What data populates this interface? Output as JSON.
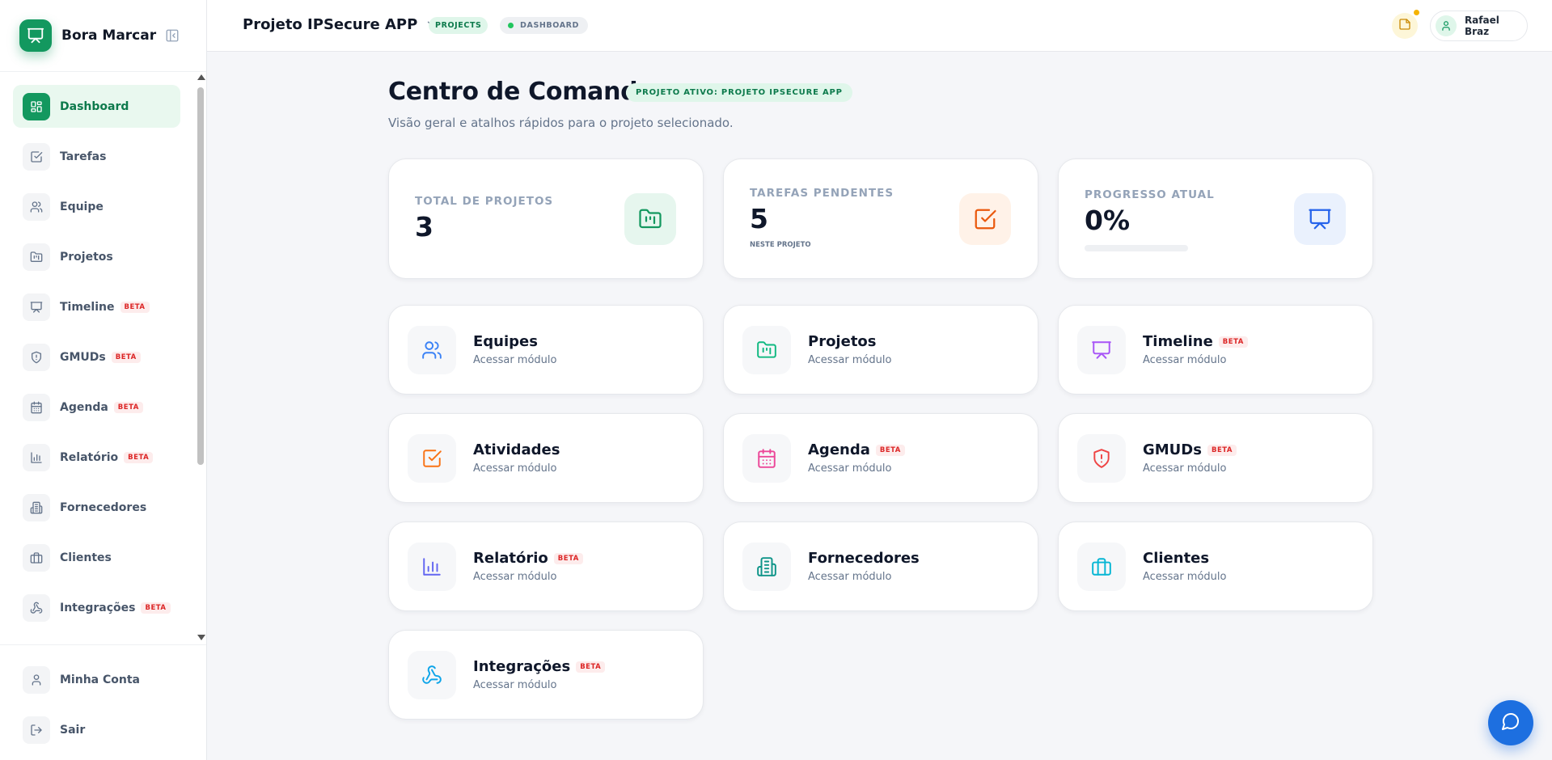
{
  "brand": {
    "name": "Bora Marcar"
  },
  "sidebar": {
    "items": [
      {
        "label": "Dashboard",
        "icon": "layout-dashboard-icon",
        "active": true
      },
      {
        "label": "Tarefas",
        "icon": "square-check-icon"
      },
      {
        "label": "Equipe",
        "icon": "users-icon"
      },
      {
        "label": "Projetos",
        "icon": "folder-kanban-icon"
      },
      {
        "label": "Timeline",
        "icon": "presentation-icon",
        "badge": "BETA"
      },
      {
        "label": "GMUDs",
        "icon": "shield-alert-icon",
        "badge": "BETA"
      },
      {
        "label": "Agenda",
        "icon": "calendar-icon",
        "badge": "BETA"
      },
      {
        "label": "Relatório",
        "icon": "bar-chart-icon",
        "badge": "BETA"
      },
      {
        "label": "Fornecedores",
        "icon": "building-icon"
      },
      {
        "label": "Clientes",
        "icon": "briefcase-icon"
      },
      {
        "label": "Integrações",
        "icon": "webhook-icon",
        "badge": "BETA"
      }
    ],
    "bottom": [
      {
        "label": "Minha Conta",
        "icon": "user-icon"
      },
      {
        "label": "Sair",
        "icon": "log-out-icon"
      }
    ]
  },
  "header": {
    "project_name": "Projeto IPSecure APP",
    "breadcrumb_projects": "PROJECTS",
    "breadcrumb_dashboard": "DASHBOARD",
    "user_name": "Rafael Braz"
  },
  "main": {
    "title": "Centro de Comando",
    "active_badge": "PROJETO ATIVO: PROJETO IPSECURE APP",
    "subtitle": "Visão geral e atalhos rápidos para o projeto selecionado.",
    "stats": [
      {
        "label": "TOTAL DE PROJETOS",
        "value": "3",
        "icon": "folder-kanban-icon"
      },
      {
        "label": "TAREFAS PENDENTES",
        "value": "5",
        "sub": "NESTE PROJETO",
        "icon": "square-check-icon"
      },
      {
        "label": "PROGRESSO ATUAL",
        "value": "0%",
        "progress": 0,
        "icon": "presentation-icon"
      }
    ],
    "modules": [
      {
        "title": "Equipes",
        "sub": "Acessar módulo",
        "icon": "users-icon"
      },
      {
        "title": "Projetos",
        "sub": "Acessar módulo",
        "icon": "folder-kanban-icon"
      },
      {
        "title": "Timeline",
        "sub": "Acessar módulo",
        "badge": "BETA",
        "icon": "presentation-icon"
      },
      {
        "title": "Atividades",
        "sub": "Acessar módulo",
        "icon": "square-check-icon"
      },
      {
        "title": "Agenda",
        "sub": "Acessar módulo",
        "badge": "BETA",
        "icon": "calendar-icon"
      },
      {
        "title": "GMUDs",
        "sub": "Acessar módulo",
        "badge": "BETA",
        "icon": "shield-alert-icon"
      },
      {
        "title": "Relatório",
        "sub": "Acessar módulo",
        "badge": "BETA",
        "icon": "bar-chart-icon"
      },
      {
        "title": "Fornecedores",
        "sub": "Acessar módulo",
        "icon": "building-icon"
      },
      {
        "title": "Clientes",
        "sub": "Acessar módulo",
        "icon": "briefcase-icon"
      },
      {
        "title": "Integrações",
        "sub": "Acessar módulo",
        "badge": "BETA",
        "icon": "webhook-icon"
      }
    ]
  },
  "colors": {
    "brand_green": "#13985f",
    "beta_red": "#dc2626",
    "chat_blue": "#1d6fe0"
  }
}
